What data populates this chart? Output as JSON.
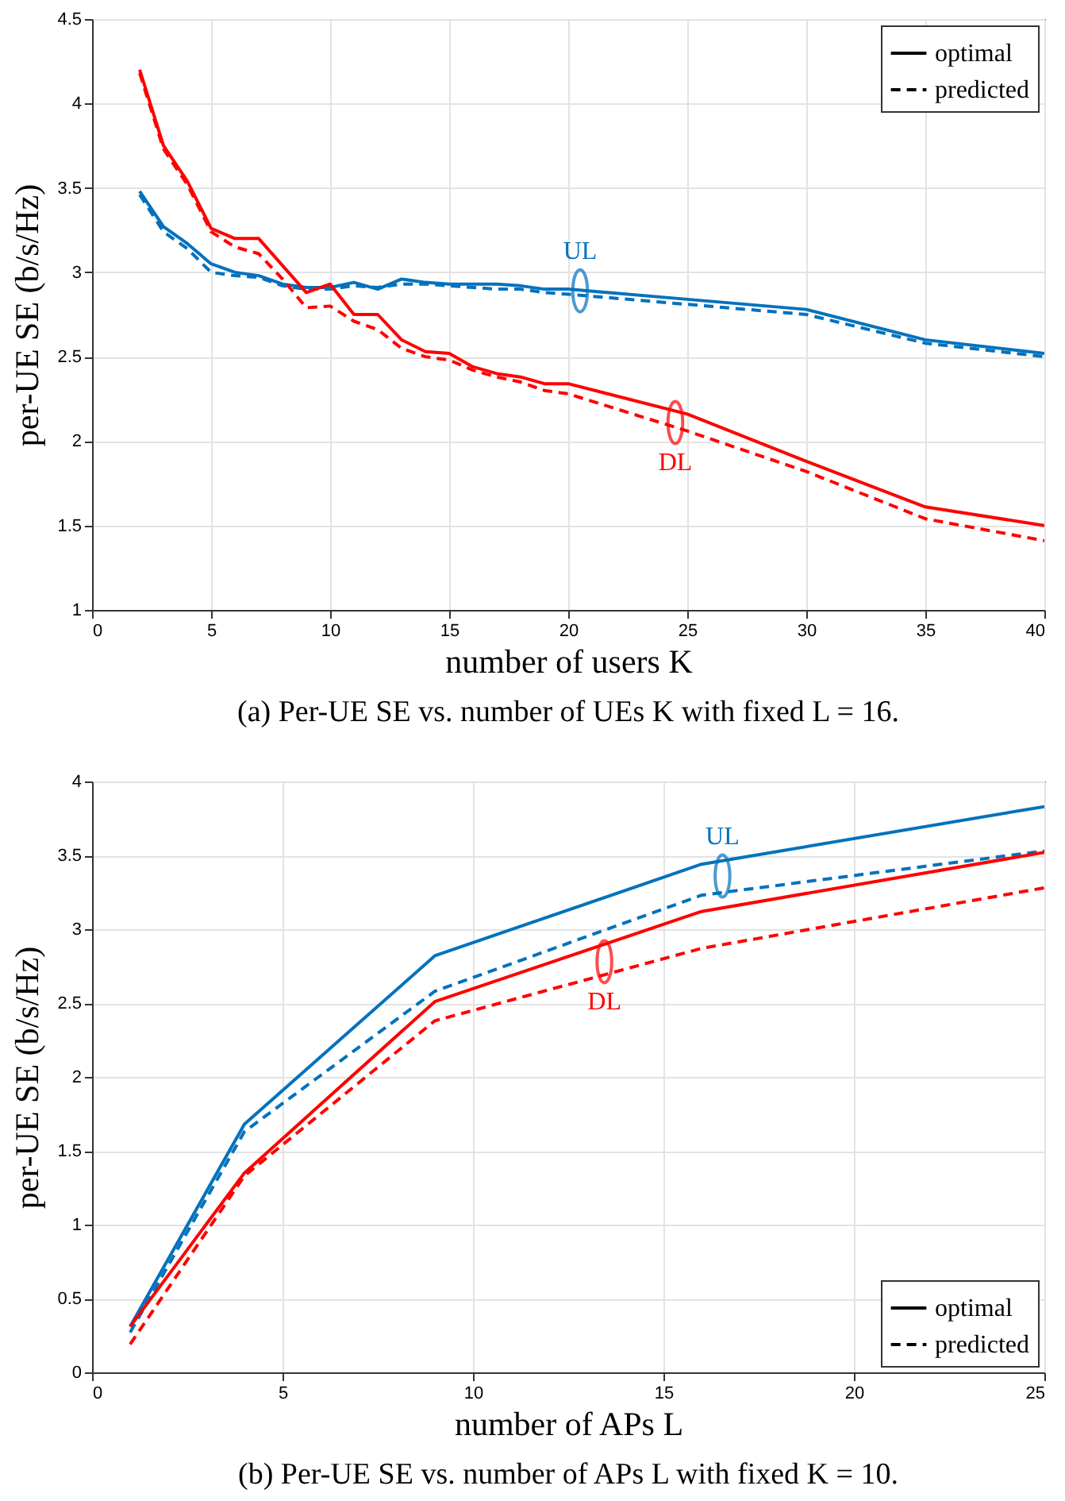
{
  "chart_data": [
    {
      "type": "line",
      "title": "(a) Per-UE SE vs. number of UEs K with fixed L = 16.",
      "xlabel": "number of users K",
      "ylabel": "per-UE SE (b/s/Hz)",
      "x": [
        2,
        3,
        4,
        5,
        6,
        7,
        8,
        9,
        10,
        11,
        12,
        13,
        14,
        15,
        16,
        17,
        18,
        19,
        20,
        25,
        30,
        35,
        40
      ],
      "series": [
        {
          "color": "#0072bd",
          "line_style": "solid",
          "values": [
            3.48,
            3.27,
            3.17,
            3.05,
            3.0,
            2.98,
            2.93,
            2.91,
            2.91,
            2.94,
            2.9,
            2.96,
            2.94,
            2.93,
            2.93,
            2.93,
            2.92,
            2.9,
            2.9,
            2.84,
            2.78,
            2.6,
            2.52
          ]
        },
        {
          "color": "#0072bd",
          "line_style": "dashed",
          "values": [
            3.46,
            3.24,
            3.14,
            3.0,
            2.98,
            2.97,
            2.92,
            2.9,
            2.9,
            2.92,
            2.91,
            2.93,
            2.93,
            2.92,
            2.91,
            2.9,
            2.9,
            2.88,
            2.87,
            2.81,
            2.75,
            2.58,
            2.5
          ]
        },
        {
          "color": "#ff0000",
          "line_style": "solid",
          "values": [
            4.2,
            3.75,
            3.54,
            3.26,
            3.2,
            3.2,
            3.04,
            2.88,
            2.93,
            2.75,
            2.75,
            2.6,
            2.53,
            2.52,
            2.44,
            2.4,
            2.38,
            2.34,
            2.34,
            2.16,
            1.88,
            1.61,
            1.5
          ]
        },
        {
          "color": "#ff0000",
          "line_style": "dashed",
          "values": [
            4.18,
            3.73,
            3.52,
            3.24,
            3.15,
            3.11,
            2.96,
            2.79,
            2.8,
            2.71,
            2.66,
            2.55,
            2.5,
            2.48,
            2.42,
            2.38,
            2.35,
            2.3,
            2.28,
            2.06,
            1.82,
            1.54,
            1.41
          ]
        }
      ],
      "annotations": [
        "optimal",
        "predicted",
        {
          "text": "UL",
          "x": 20.5,
          "y": 2.89
        },
        {
          "text": "DL",
          "x": 24.5,
          "y": 2.11
        }
      ],
      "xlim": [
        0,
        40
      ],
      "xticks": [
        0,
        5,
        10,
        15,
        20,
        25,
        30,
        35,
        40
      ],
      "ylim": [
        1,
        4.5
      ],
      "yticks": [
        1,
        1.5,
        2,
        2.5,
        3,
        3.5,
        4,
        4.5
      ],
      "grid": true
    },
    {
      "type": "line",
      "title": "(b) Per-UE SE vs. number of APs L with fixed K = 10.",
      "xlabel": "number of APs L",
      "ylabel": "per-UE SE (b/s/Hz)",
      "x": [
        1,
        4,
        9,
        16,
        25
      ],
      "series": [
        {
          "color": "#0072bd",
          "line_style": "solid",
          "values": [
            0.31,
            1.68,
            2.82,
            3.44,
            3.83
          ]
        },
        {
          "color": "#0072bd",
          "line_style": "dashed",
          "values": [
            0.27,
            1.63,
            2.58,
            3.23,
            3.53
          ]
        },
        {
          "color": "#ff0000",
          "line_style": "solid",
          "values": [
            0.31,
            1.35,
            2.51,
            3.12,
            3.52
          ]
        },
        {
          "color": "#ff0000",
          "line_style": "dashed",
          "values": [
            0.19,
            1.33,
            2.38,
            2.87,
            3.28
          ]
        }
      ],
      "annotations": [
        "optimal",
        "predicted",
        {
          "text": "UL",
          "x": 16.55,
          "y": 3.36
        },
        {
          "text": "DL",
          "x": 13.45,
          "y": 2.78
        }
      ],
      "xlim": [
        0,
        25
      ],
      "xticks": [
        0,
        5,
        10,
        15,
        20,
        25
      ],
      "ylim": [
        0,
        4
      ],
      "yticks": [
        0,
        0.5,
        1,
        1.5,
        2,
        2.5,
        3,
        3.5,
        4
      ],
      "grid": true
    }
  ]
}
